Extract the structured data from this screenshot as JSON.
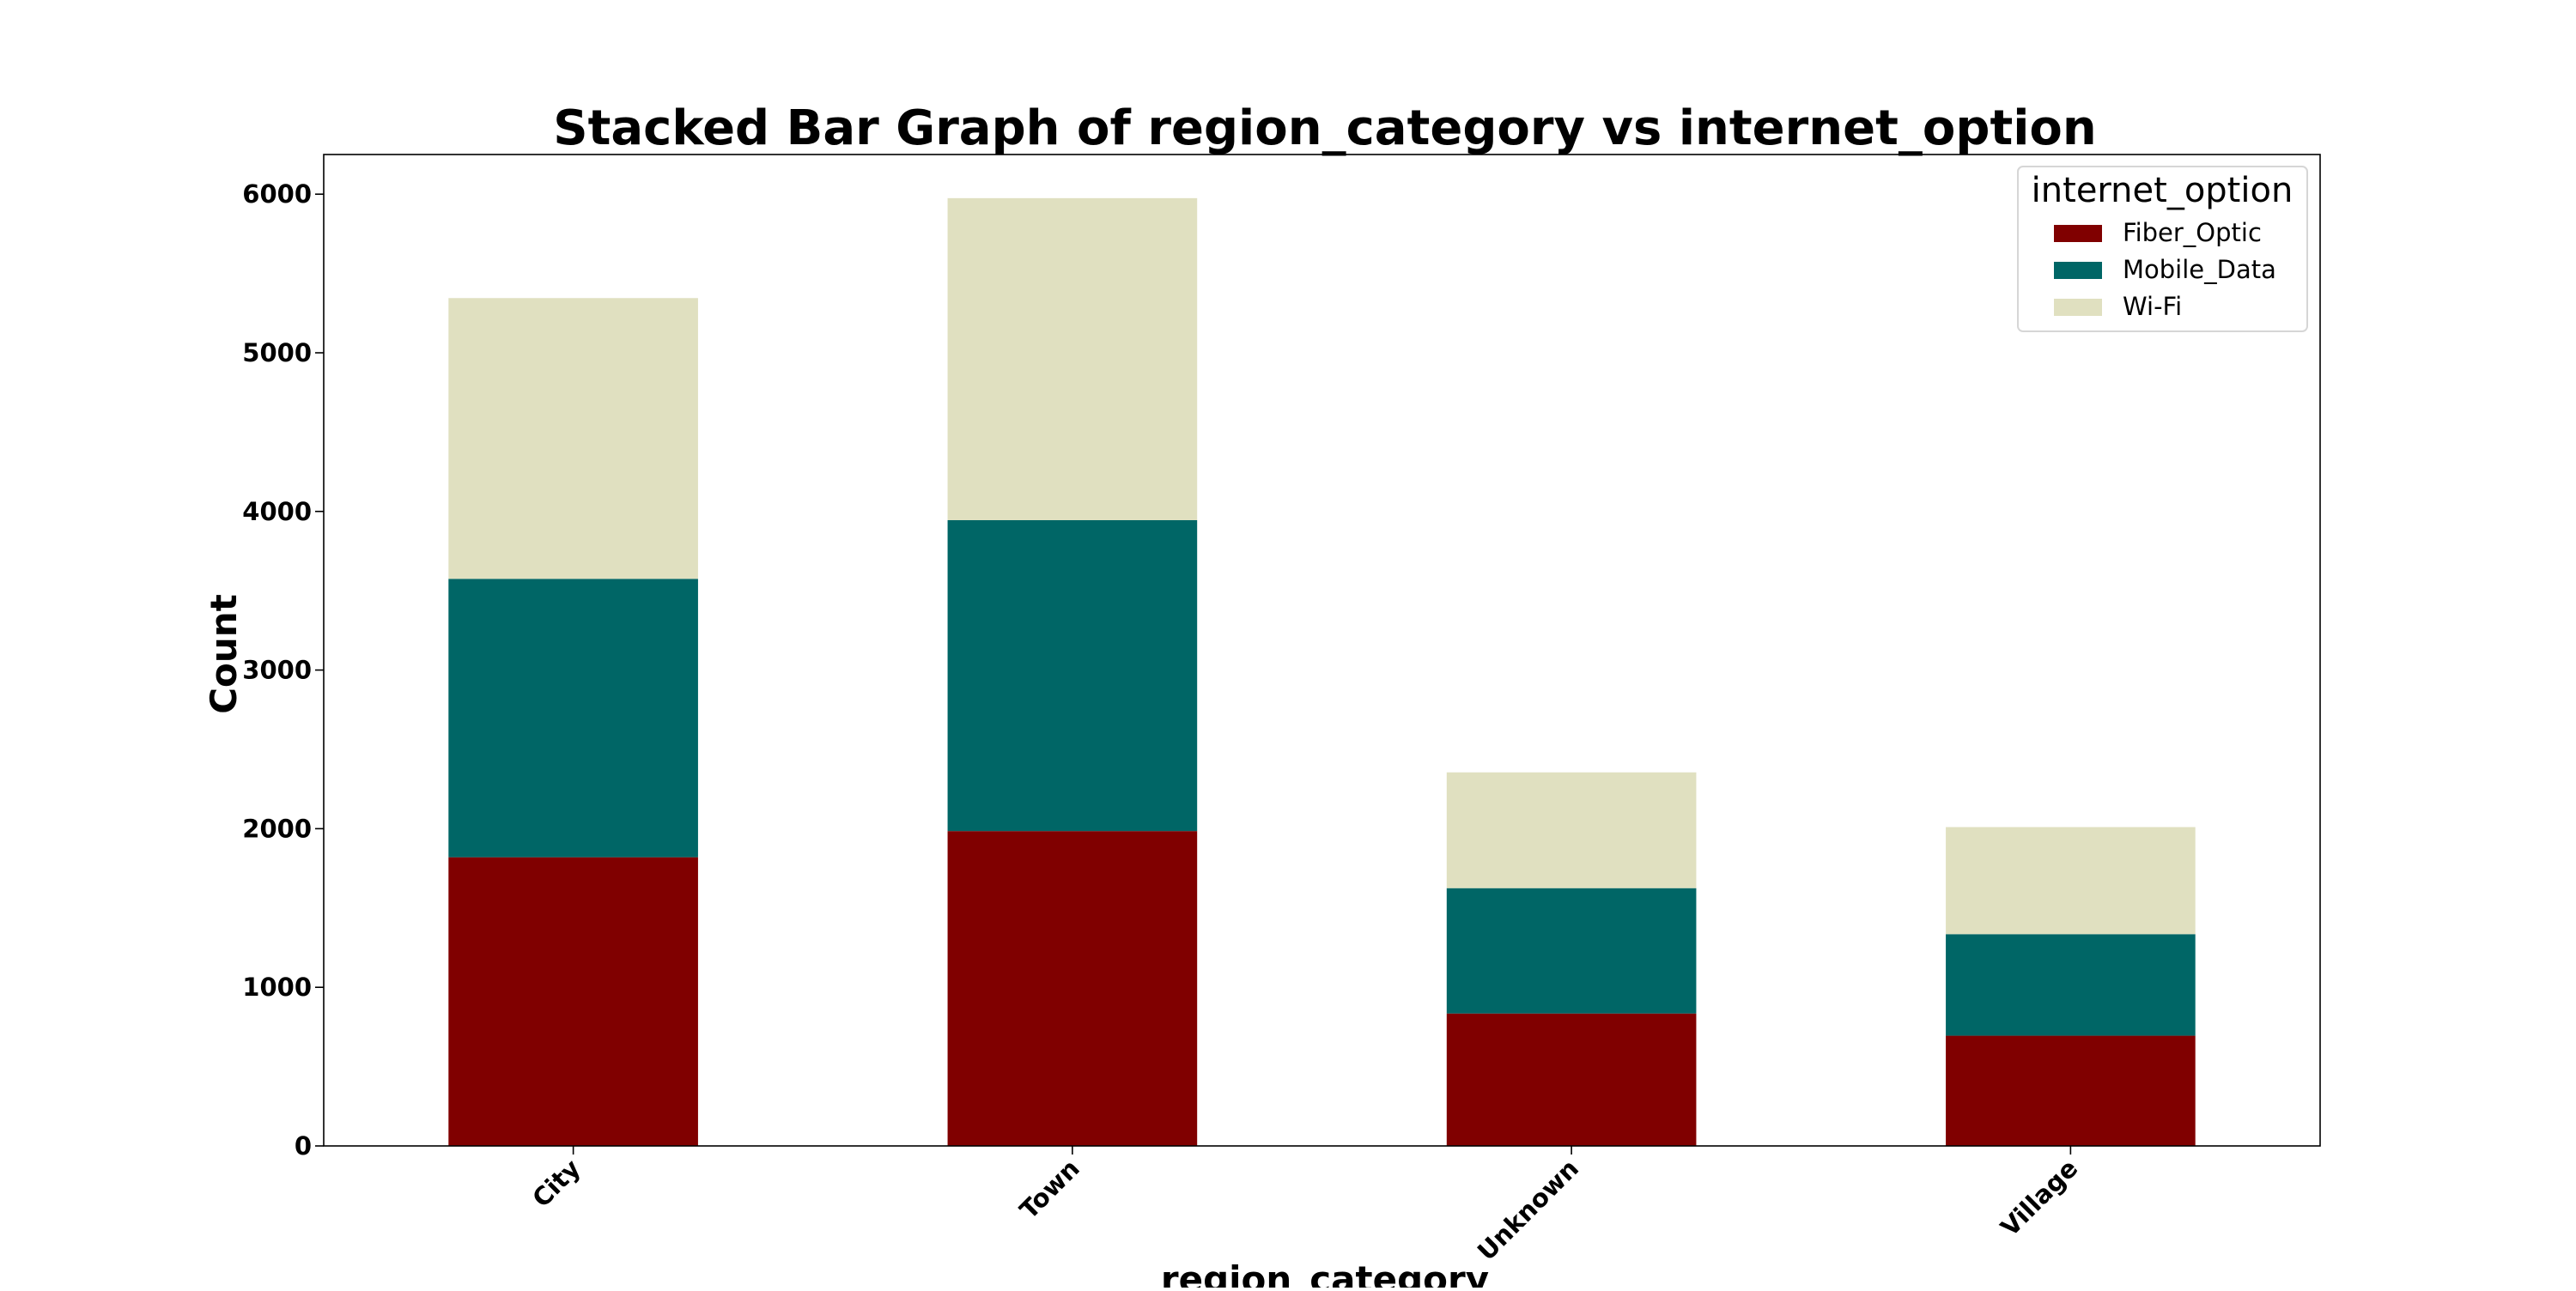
{
  "chart_data": {
    "type": "bar",
    "stacked": true,
    "title": "Stacked Bar Graph of region_category vs internet_option",
    "xlabel": "region_category",
    "ylabel": "Count",
    "categories": [
      "City",
      "Town",
      "Unknown",
      "Village"
    ],
    "series": [
      {
        "name": "Fiber_Optic",
        "color": "#800000",
        "values": [
          1820,
          1985,
          835,
          695
        ]
      },
      {
        "name": "Mobile_Data",
        "color": "#006666",
        "values": [
          1755,
          1960,
          790,
          640
        ]
      },
      {
        "name": "Wi-Fi",
        "color": "#e0e0c0",
        "values": [
          1770,
          2030,
          730,
          675
        ]
      }
    ],
    "ylim": [
      0,
      6250
    ],
    "yticks": [
      0,
      1000,
      2000,
      3000,
      4000,
      5000,
      6000
    ],
    "grid": false,
    "legend": {
      "title": "internet_option",
      "placement": "top-right"
    },
    "xtick_rotation_deg": 45
  }
}
